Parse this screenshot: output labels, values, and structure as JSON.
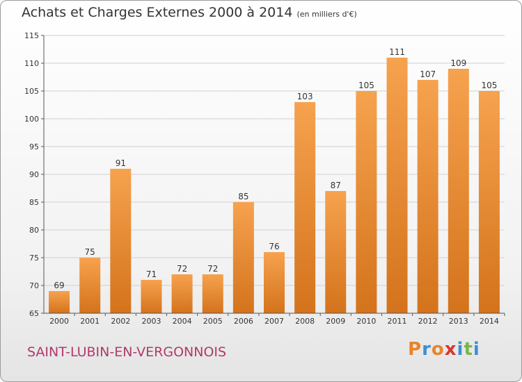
{
  "page": {
    "title": "Achats et Charges Externes 2000 à 2014",
    "subtitle": "(en milliers d'€)",
    "town": "SAINT-LUBIN-EN-VERGONNOIS",
    "brand": "Proxiti"
  },
  "colors": {
    "bar_light": "#f6a24e",
    "bar_dark": "#d4731c",
    "town_text": "#b03a6b",
    "brand_letters": [
      "#e8852a",
      "#3d8fd1",
      "#e8852a",
      "#d8362b",
      "#3d8fd1",
      "#7ab648",
      "#3d8fd1"
    ]
  },
  "chart_data": {
    "type": "bar",
    "categories": [
      "2000",
      "2001",
      "2002",
      "2003",
      "2004",
      "2005",
      "2006",
      "2007",
      "2008",
      "2009",
      "2010",
      "2011",
      "2012",
      "2013",
      "2014"
    ],
    "values": [
      69,
      75,
      91,
      71,
      72,
      72,
      85,
      76,
      103,
      87,
      105,
      111,
      107,
      109,
      105
    ],
    "title": "Achats et Charges Externes 2000 à 2014",
    "subtitle": "(en milliers d'€)",
    "ylim": [
      65,
      115
    ],
    "yticks": [
      65,
      70,
      75,
      80,
      85,
      90,
      95,
      100,
      105,
      110,
      115
    ],
    "grid": true,
    "legend": "none"
  }
}
